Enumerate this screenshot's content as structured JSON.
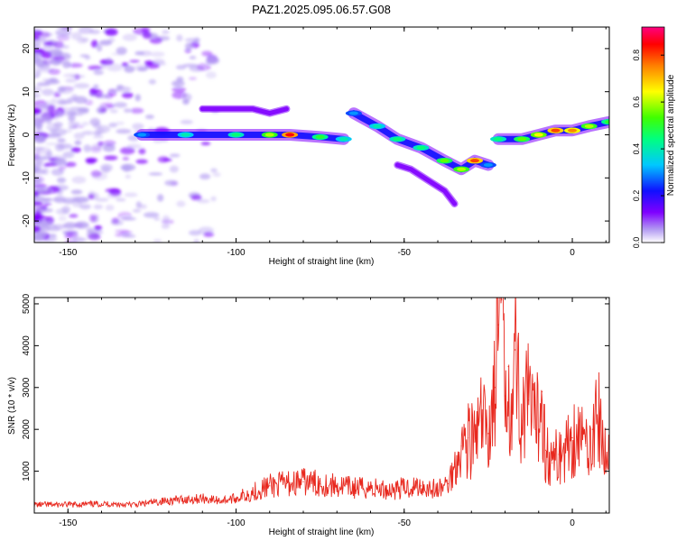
{
  "figure_title": "PAZ1.2025.095.06.57.G08",
  "colors": {
    "spectrogram_fill": "#7a2cf0",
    "snr_line": "#e8281e",
    "axis": "#000000"
  },
  "chart_data": [
    {
      "type": "heatmap",
      "title": "PAZ1.2025.095.06.57.G08",
      "xlabel": "Height of straight line (km)",
      "ylabel": "Frequency (Hz)",
      "xlim": [
        -160,
        11
      ],
      "ylim": [
        -25,
        25
      ],
      "x_ticks": [
        -150,
        -100,
        -50,
        0
      ],
      "y_ticks": [
        -20,
        -10,
        0,
        10,
        20
      ],
      "colorbar": {
        "label": "Normalized spectral amplitude",
        "range": [
          0,
          0.92
        ],
        "ticks": [
          0,
          0.2,
          0.4,
          0.6,
          0.8
        ],
        "colormap": "rainbow (purple-blue-cyan-green-yellow-red-magenta)"
      },
      "ridges": [
        {
          "name": "",
          "x": [
            -128,
            -115,
            -100,
            -90,
            -84,
            -75,
            -68
          ],
          "y": [
            0,
            0,
            0,
            0,
            0,
            -0.5,
            -1
          ],
          "amplitude": [
            0.3,
            0.4,
            0.45,
            0.6,
            0.85,
            0.5,
            0.4
          ]
        },
        {
          "name": "",
          "x": [
            -65,
            -58,
            -52,
            -45,
            -38,
            -33,
            -29,
            -25
          ],
          "y": [
            5,
            2,
            -1,
            -3,
            -6,
            -8,
            -6,
            -7
          ],
          "amplitude": [
            0.3,
            0.4,
            0.45,
            0.45,
            0.55,
            0.6,
            0.8,
            0.3
          ]
        },
        {
          "name": "",
          "x": [
            -22,
            -15,
            -10,
            -5,
            0,
            5,
            11
          ],
          "y": [
            -1,
            -1,
            0,
            1,
            1,
            2,
            3
          ],
          "amplitude": [
            0.45,
            0.55,
            0.65,
            0.8,
            0.75,
            0.6,
            0.5
          ]
        },
        {
          "name": "",
          "x": [
            -110,
            -100,
            -95,
            -90,
            -85
          ],
          "y": [
            6,
            6,
            6,
            5,
            6
          ],
          "amplitude": [
            0.15,
            0.2,
            0.15,
            0.15,
            0.15
          ]
        },
        {
          "name": "",
          "x": [
            -52,
            -48,
            -42,
            -38,
            -35
          ],
          "y": [
            -7,
            -8,
            -11,
            -13,
            -16
          ],
          "amplitude": [
            0.15,
            0.2,
            0.25,
            0.2,
            0.15
          ]
        }
      ]
    },
    {
      "type": "line",
      "xlabel": "Height of straight line (km)",
      "ylabel": "SNR (10 * v/v)",
      "xlim": [
        -160,
        11
      ],
      "ylim": [
        0,
        5150
      ],
      "x_ticks": [
        -150,
        -100,
        -50,
        0
      ],
      "y_ticks": [
        1000,
        2000,
        3000,
        4000,
        5000
      ],
      "series": [
        {
          "name": "",
          "x": [
            -160,
            -150,
            -140,
            -130,
            -120,
            -110,
            -105,
            -100,
            -95,
            -90,
            -85,
            -80,
            -75,
            -70,
            -65,
            -60,
            -55,
            -50,
            -45,
            -40,
            -37,
            -35,
            -33,
            -31,
            -29,
            -27,
            -25,
            -23,
            -22,
            -21,
            -20,
            -19,
            -18,
            -17,
            -15,
            -13,
            -11,
            -9,
            -8,
            -6,
            -4,
            -2,
            0,
            2,
            4,
            6,
            8,
            10,
            11
          ],
          "y": [
            200,
            200,
            220,
            200,
            300,
            350,
            300,
            350,
            500,
            650,
            700,
            750,
            700,
            650,
            600,
            600,
            550,
            600,
            650,
            550,
            700,
            1100,
            1600,
            1800,
            1700,
            2200,
            1900,
            3000,
            4500,
            5100,
            2800,
            3500,
            2400,
            3900,
            2200,
            2700,
            2000,
            2900,
            1500,
            1200,
            1400,
            1500,
            1800,
            1900,
            1600,
            2000,
            2200,
            1200,
            1500
          ]
        }
      ]
    }
  ]
}
